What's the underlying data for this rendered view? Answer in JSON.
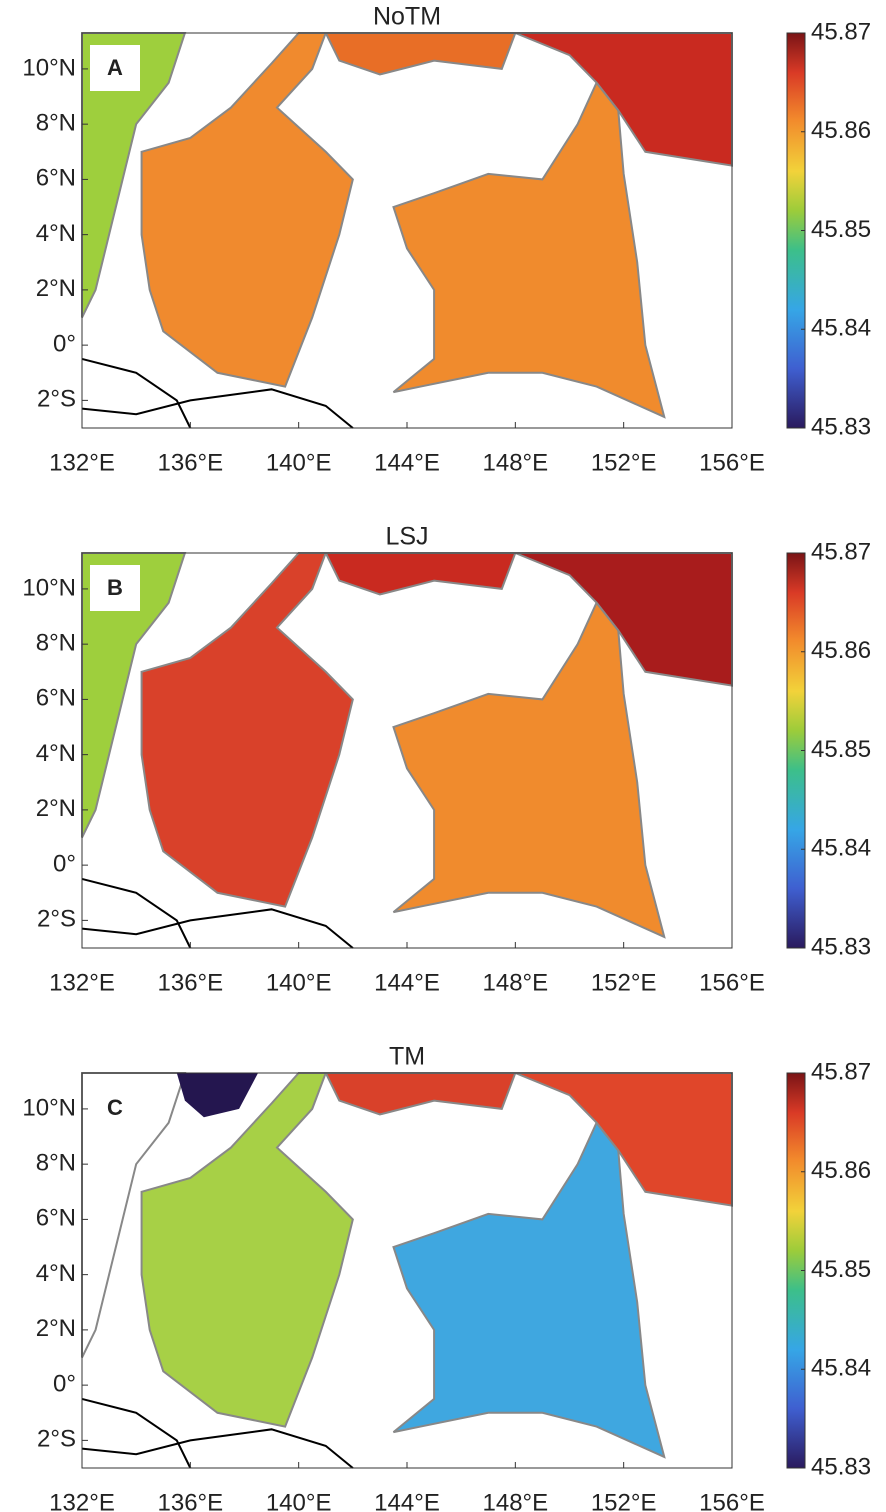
{
  "colorbar": {
    "lim": [
      45.83,
      45.87
    ],
    "ticks": [
      45.87,
      45.86,
      45.85,
      45.84,
      45.83
    ]
  },
  "xlim": [
    132,
    156
  ],
  "ylim": [
    -3,
    11.3
  ],
  "lon_ticks": [
    {
      "value": 132,
      "label": "132°E"
    },
    {
      "value": 136,
      "label": "136°E"
    },
    {
      "value": 140,
      "label": "140°E"
    },
    {
      "value": 144,
      "label": "144°E"
    },
    {
      "value": 148,
      "label": "148°E"
    },
    {
      "value": 152,
      "label": "152°E"
    },
    {
      "value": 156,
      "label": "156°E"
    }
  ],
  "lat_ticks": [
    {
      "value": 10,
      "label": "10°N"
    },
    {
      "value": 8,
      "label": "8°N"
    },
    {
      "value": 6,
      "label": "6°N"
    },
    {
      "value": 4,
      "label": "4°N"
    },
    {
      "value": 2,
      "label": "2°N"
    },
    {
      "value": 0,
      "label": "0°"
    },
    {
      "value": -2,
      "label": "2°S"
    }
  ],
  "panels": [
    {
      "title": "NoTM",
      "label": "A"
    },
    {
      "title": "LSJ",
      "label": "B"
    },
    {
      "title": "TM",
      "label": "C"
    }
  ]
}
